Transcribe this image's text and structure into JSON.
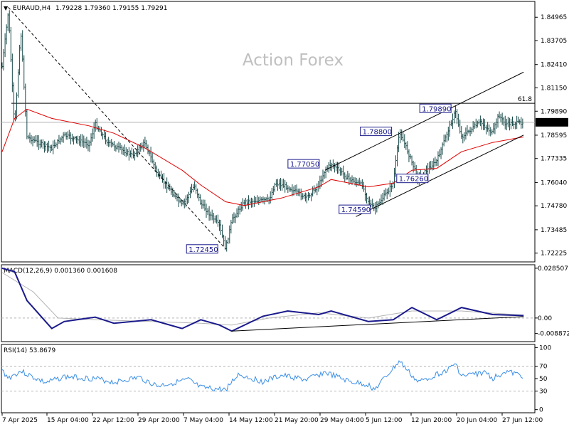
{
  "header": {
    "symbol": "EURAUD,H4",
    "ohlc": "1.79228 1.79360 1.79155 1.79291",
    "dropdown_glyph": "▼",
    "dropdown_icon": "dropdown-triangle-icon"
  },
  "watermark": "Action Forex",
  "colors": {
    "price_bar": "#1a4a4a",
    "ma": "#e00000",
    "macd": "#1a1a8c",
    "signal": "#b4b4b4",
    "rsi": "#3a8ee6",
    "grid": "#b4b4b4",
    "trendline": "#000000",
    "label_border": "#1a1a8c",
    "current_price_bg": "#000000",
    "watermark": "#c0c0c0"
  },
  "chart_data": [
    {
      "type": "line",
      "title": "EURAUD,H4",
      "x_tick_labels": [
        "7 Apr 2025",
        "15 Apr 04:00",
        "22 Apr 12:00",
        "29 Apr 20:00",
        "7 May 04:00",
        "14 May 12:00",
        "21 May 20:00",
        "29 May 04:00",
        "5 Jun 12:00",
        "12 Jun 20:00",
        "20 Jun 04:00",
        "27 Jun 12:00"
      ],
      "y_tick_labels": [
        "1.84965",
        "1.83705",
        "1.82410",
        "1.81150",
        "1.79890",
        "1.78595",
        "1.77335",
        "1.76040",
        "1.74780",
        "1.73485",
        "1.72225"
      ],
      "ylim": [
        1.7175,
        1.8582
      ],
      "current_price": "1.79291",
      "fib_level": {
        "label": "61.8",
        "value": 1.8032
      },
      "price_labels": [
        "1.72450",
        "1.77050",
        "1.78800",
        "1.79890",
        "1.76260",
        "1.74590"
      ],
      "close_path": [
        {
          "x": "7 Apr",
          "y": 1.823
        },
        {
          "x": "8 Apr",
          "y": 1.853
        },
        {
          "x": "9 Apr",
          "y": 1.789
        },
        {
          "x": "10 Apr",
          "y": 1.843
        },
        {
          "x": "11 Apr",
          "y": 1.785
        },
        {
          "x": "14 Apr",
          "y": 1.78
        },
        {
          "x": "15 Apr",
          "y": 1.779
        },
        {
          "x": "17 Apr",
          "y": 1.786
        },
        {
          "x": "21 Apr",
          "y": 1.781
        },
        {
          "x": "22 Apr",
          "y": 1.792
        },
        {
          "x": "24 Apr",
          "y": 1.782
        },
        {
          "x": "28 Apr",
          "y": 1.775
        },
        {
          "x": "30 Apr",
          "y": 1.782
        },
        {
          "x": "2 May",
          "y": 1.765
        },
        {
          "x": "6 May",
          "y": 1.748
        },
        {
          "x": "8 May",
          "y": 1.759
        },
        {
          "x": "9 May",
          "y": 1.749
        },
        {
          "x": "12 May",
          "y": 1.737
        },
        {
          "x": "13 May",
          "y": 1.7245
        },
        {
          "x": "14 May",
          "y": 1.74
        },
        {
          "x": "16 May",
          "y": 1.75
        },
        {
          "x": "20 May",
          "y": 1.751
        },
        {
          "x": "21 May",
          "y": 1.76
        },
        {
          "x": "23 May",
          "y": 1.758
        },
        {
          "x": "26 May",
          "y": 1.752
        },
        {
          "x": "28 May",
          "y": 1.759
        },
        {
          "x": "29 May",
          "y": 1.767
        },
        {
          "x": "30 May",
          "y": 1.7705
        },
        {
          "x": "2 Jun",
          "y": 1.762
        },
        {
          "x": "4 Jun",
          "y": 1.759
        },
        {
          "x": "5 Jun",
          "y": 1.75
        },
        {
          "x": "6 Jun",
          "y": 1.7459
        },
        {
          "x": "9 Jun",
          "y": 1.76
        },
        {
          "x": "10 Jun",
          "y": 1.788
        },
        {
          "x": "11 Jun",
          "y": 1.78
        },
        {
          "x": "13 Jun",
          "y": 1.7626
        },
        {
          "x": "16 Jun",
          "y": 1.772
        },
        {
          "x": "18 Jun",
          "y": 1.79
        },
        {
          "x": "19 Jun",
          "y": 1.7989
        },
        {
          "x": "20 Jun",
          "y": 1.785
        },
        {
          "x": "23 Jun",
          "y": 1.793
        },
        {
          "x": "25 Jun",
          "y": 1.787
        },
        {
          "x": "26 Jun",
          "y": 1.797
        },
        {
          "x": "27 Jun",
          "y": 1.792
        },
        {
          "x": "30 Jun",
          "y": 1.7929
        }
      ],
      "moving_average": [
        {
          "x": "7 Apr",
          "y": 1.777
        },
        {
          "x": "9 Apr",
          "y": 1.795
        },
        {
          "x": "11 Apr",
          "y": 1.8
        },
        {
          "x": "15 Apr",
          "y": 1.795
        },
        {
          "x": "21 Apr",
          "y": 1.791
        },
        {
          "x": "25 Apr",
          "y": 1.787
        },
        {
          "x": "30 Apr",
          "y": 1.779
        },
        {
          "x": "6 May",
          "y": 1.767
        },
        {
          "x": "9 May",
          "y": 1.759
        },
        {
          "x": "13 May",
          "y": 1.75
        },
        {
          "x": "16 May",
          "y": 1.748
        },
        {
          "x": "22 May",
          "y": 1.752
        },
        {
          "x": "28 May",
          "y": 1.758
        },
        {
          "x": "30 May",
          "y": 1.762
        },
        {
          "x": "5 Jun",
          "y": 1.758
        },
        {
          "x": "9 Jun",
          "y": 1.76
        },
        {
          "x": "12 Jun",
          "y": 1.767
        },
        {
          "x": "16 Jun",
          "y": 1.768
        },
        {
          "x": "20 Jun",
          "y": 1.777
        },
        {
          "x": "25 Jun",
          "y": 1.782
        },
        {
          "x": "30 Jun",
          "y": 1.785
        }
      ],
      "trendlines": [
        {
          "from": {
            "x": "8 Apr",
            "y": 1.855
          },
          "to": {
            "x": "13 May",
            "y": 1.7245
          }
        },
        {
          "from": {
            "x": "29 May",
            "y": 1.767
          },
          "to": {
            "x": "30 Jun",
            "y": 1.82
          }
        },
        {
          "from": {
            "x": "3 Jun",
            "y": 1.742
          },
          "to": {
            "x": "30 Jun",
            "y": 1.786
          }
        }
      ]
    },
    {
      "type": "line",
      "title": "MACD(12,26,9) 0.001360 0.001608",
      "y_tick_labels": [
        "0.028507",
        "0.00",
        "-0.008872"
      ],
      "ylim": [
        -0.0135,
        0.0305
      ],
      "series": [
        {
          "values": [
            {
              "x": "7 Apr",
              "y": 0.0285
            },
            {
              "x": "9 Apr",
              "y": 0.0265
            },
            {
              "x": "11 Apr",
              "y": 0.01
            },
            {
              "x": "15 Apr",
              "y": -0.006
            },
            {
              "x": "17 Apr",
              "y": -0.002
            },
            {
              "x": "22 Apr",
              "y": 0.0005
            },
            {
              "x": "25 Apr",
              "y": -0.003
            },
            {
              "x": "1 May",
              "y": -0.001
            },
            {
              "x": "6 May",
              "y": -0.006
            },
            {
              "x": "9 May",
              "y": -0.001
            },
            {
              "x": "12 May",
              "y": -0.004
            },
            {
              "x": "14 May",
              "y": -0.0075
            },
            {
              "x": "19 May",
              "y": 0.001
            },
            {
              "x": "23 May",
              "y": 0.004
            },
            {
              "x": "28 May",
              "y": 0.002
            },
            {
              "x": "30 May",
              "y": 0.004
            },
            {
              "x": "5 Jun",
              "y": -0.002
            },
            {
              "x": "9 Jun",
              "y": -0.001
            },
            {
              "x": "12 Jun",
              "y": 0.006
            },
            {
              "x": "16 Jun",
              "y": -0.001
            },
            {
              "x": "20 Jun",
              "y": 0.006
            },
            {
              "x": "25 Jun",
              "y": 0.002
            },
            {
              "x": "30 Jun",
              "y": 0.0014
            }
          ]
        },
        {
          "values": [
            {
              "x": "7 Apr",
              "y": 0.026
            },
            {
              "x": "12 Apr",
              "y": 0.015
            },
            {
              "x": "16 Apr",
              "y": 0.0
            },
            {
              "x": "22 Apr",
              "y": -0.001
            },
            {
              "x": "1 May",
              "y": -0.002
            },
            {
              "x": "9 May",
              "y": -0.003
            },
            {
              "x": "14 May",
              "y": -0.004
            },
            {
              "x": "20 May",
              "y": 0.0
            },
            {
              "x": "28 May",
              "y": 0.003
            },
            {
              "x": "5 Jun",
              "y": 0.0
            },
            {
              "x": "12 Jun",
              "y": 0.004
            },
            {
              "x": "20 Jun",
              "y": 0.004
            },
            {
              "x": "30 Jun",
              "y": 0.0016
            }
          ]
        }
      ],
      "trendline": {
        "from": {
          "x": "14 May",
          "y": -0.0075
        },
        "to": {
          "x": "30 Jun",
          "y": 0.0008
        }
      }
    },
    {
      "type": "line",
      "title": "RSI(14) 53.8679",
      "y_tick_labels": [
        "100",
        "70",
        "50",
        "30",
        "0"
      ],
      "ylim": [
        -5,
        105
      ],
      "levels": [
        70,
        30
      ],
      "values": [
        {
          "x": "7 Apr",
          "y": 63
        },
        {
          "x": "8 Apr",
          "y": 51
        },
        {
          "x": "10 Apr",
          "y": 62
        },
        {
          "x": "12 Apr",
          "y": 52
        },
        {
          "x": "14 Apr",
          "y": 43
        },
        {
          "x": "17 Apr",
          "y": 53
        },
        {
          "x": "22 Apr",
          "y": 50
        },
        {
          "x": "25 Apr",
          "y": 44
        },
        {
          "x": "29 Apr",
          "y": 52
        },
        {
          "x": "2 May",
          "y": 38
        },
        {
          "x": "7 May",
          "y": 48
        },
        {
          "x": "9 May",
          "y": 35
        },
        {
          "x": "13 May",
          "y": 32
        },
        {
          "x": "15 May",
          "y": 57
        },
        {
          "x": "19 May",
          "y": 45
        },
        {
          "x": "22 May",
          "y": 55
        },
        {
          "x": "26 May",
          "y": 48
        },
        {
          "x": "29 May",
          "y": 60
        },
        {
          "x": "2 Jun",
          "y": 45
        },
        {
          "x": "5 Jun",
          "y": 40
        },
        {
          "x": "6 Jun",
          "y": 32
        },
        {
          "x": "10 Jun",
          "y": 78
        },
        {
          "x": "12 Jun",
          "y": 55
        },
        {
          "x": "13 Jun",
          "y": 44
        },
        {
          "x": "18 Jun",
          "y": 65
        },
        {
          "x": "19 Jun",
          "y": 75
        },
        {
          "x": "20 Jun",
          "y": 54
        },
        {
          "x": "24 Jun",
          "y": 60
        },
        {
          "x": "25 Jun",
          "y": 50
        },
        {
          "x": "27 Jun",
          "y": 62
        },
        {
          "x": "30 Jun",
          "y": 53.87
        }
      ]
    }
  ]
}
